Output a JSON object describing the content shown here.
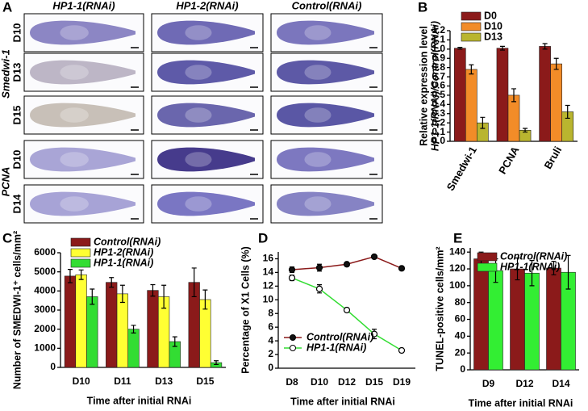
{
  "panel_a": {
    "label": "A",
    "columns": [
      "HP1-1(RNAi)",
      "HP1-2(RNAi)",
      "Control(RNAi)"
    ],
    "groups": [
      {
        "name": "Smedwi-1",
        "rows": [
          "D10",
          "D13",
          "D15"
        ]
      },
      {
        "name": "PCNA",
        "rows": [
          "D10",
          "D14"
        ]
      }
    ]
  },
  "chart_data": [
    {
      "type": "bar",
      "label": "B",
      "ylabel": [
        "Relative expression level",
        "HP1-1(RNAi)/Control(RNAi)"
      ],
      "categories": [
        "Smedwi-1",
        "PCNA",
        "Bruli"
      ],
      "series": [
        {
          "name": "D0",
          "color": "#8b1a1a",
          "values": [
            1.01,
            1.01,
            1.03
          ],
          "errors": [
            0.01,
            0.02,
            0.03
          ]
        },
        {
          "name": "D10",
          "color": "#f28c28",
          "values": [
            0.78,
            0.5,
            0.84
          ],
          "errors": [
            0.05,
            0.07,
            0.06
          ]
        },
        {
          "name": "D13",
          "color": "#b9b52f",
          "values": [
            0.2,
            0.12,
            0.32
          ],
          "errors": [
            0.06,
            0.02,
            0.07
          ]
        }
      ],
      "ylim": [
        0,
        1.2
      ],
      "yticks": [
        {
          "value": 0,
          "label": "0.0"
        },
        0.1,
        0.2,
        0.3,
        0.4,
        0.5,
        0.6,
        0.7,
        0.8,
        0.9,
        {
          "value": 1,
          "label": "1.0"
        },
        1.1,
        1.2
      ],
      "legend": "upper left"
    },
    {
      "type": "bar",
      "label": "C",
      "ylabel": [
        "Number of SMEDWI-1⁺ cells/mm²"
      ],
      "xlabel": "Time after initial RNAi",
      "categories": [
        "D10",
        "D11",
        "D13",
        "D15"
      ],
      "series": [
        {
          "name": "Control(RNAi)",
          "color": "#8b1a1a",
          "values": [
            4780,
            4450,
            4030,
            4450
          ],
          "errors": [
            350,
            250,
            300,
            750
          ]
        },
        {
          "name": "HP1-2(RNAi)",
          "color": "#ffff33",
          "values": [
            4850,
            3850,
            3700,
            3550
          ],
          "errors": [
            250,
            450,
            600,
            500
          ]
        },
        {
          "name": "HP1-1(RNAi)",
          "color": "#33dd33",
          "values": [
            3700,
            2000,
            1350,
            250
          ],
          "errors": [
            400,
            200,
            250,
            100
          ]
        }
      ],
      "ylim": [
        0,
        6000
      ],
      "yticks": [
        0,
        1000,
        2000,
        3000,
        4000,
        5000,
        6000
      ],
      "legend": "upper left"
    },
    {
      "type": "line",
      "label": "D",
      "ylabel": [
        "Percentage of X1 Cells (%)"
      ],
      "xlabel": "Time after initial RNAi",
      "categories": [
        "D8",
        "D10",
        "D12",
        "D15",
        "D19"
      ],
      "series": [
        {
          "name": "Control(RNAi)",
          "color": "#8b1a1a",
          "marker": "filled",
          "values": [
            14.4,
            14.7,
            15.2,
            16.3,
            14.6
          ],
          "errors": [
            0.4,
            0.5,
            0.3,
            0.2,
            0.2
          ]
        },
        {
          "name": "HP1-1(RNAi)",
          "color": "#33dd33",
          "marker": "open",
          "values": [
            13.2,
            11.6,
            8.5,
            5.0,
            2.6
          ],
          "errors": [
            0.4,
            0.6,
            0.3,
            0.7,
            0.3
          ]
        }
      ],
      "ylim": [
        0,
        17
      ],
      "yticks": [
        0,
        2,
        4,
        6,
        8,
        10,
        12,
        14,
        16
      ],
      "legend": "lower left"
    },
    {
      "type": "bar",
      "label": "E",
      "ylabel": [
        "TUNEL-positive cells/mm²"
      ],
      "xlabel": "Time after initial RNAi",
      "categories": [
        "D9",
        "D12",
        "D14"
      ],
      "series": [
        {
          "name": "Control(RNAi)",
          "color": "#8b1a1a",
          "values": [
            132,
            120,
            121
          ],
          "errors": [
            8,
            13,
            8
          ]
        },
        {
          "name": "HP1-1(RNAi)",
          "color": "#33ee33",
          "values": [
            118,
            115,
            116
          ],
          "errors": [
            14,
            15,
            20
          ]
        }
      ],
      "ylim": [
        0,
        145
      ],
      "yticks": [
        0,
        20,
        40,
        60,
        80,
        100,
        120,
        140
      ],
      "legend": "upper left"
    }
  ]
}
